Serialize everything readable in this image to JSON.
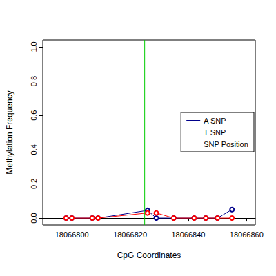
{
  "chart_data": {
    "type": "line",
    "x_label": "CpG Coordinates",
    "y_label": "Methylation Frequency",
    "xlim": [
      18066790,
      18066863
    ],
    "xticks": [
      18066800,
      18066820,
      18066840,
      18066860
    ],
    "ylim": [
      -0.04,
      1.04
    ],
    "yticks": [
      0.0,
      0.2,
      0.4,
      0.6,
      0.8,
      1.0
    ],
    "yticks_labels": [
      "0.0",
      "0.2",
      "0.4",
      "0.6",
      "0.8",
      "1.0"
    ],
    "x": [
      18066798,
      18066800,
      18066807,
      18066809,
      18066826,
      18066829,
      18066835,
      18066842,
      18066846,
      18066850,
      18066855
    ],
    "series": [
      {
        "name": "A SNP",
        "color": "#00008b",
        "marker": "open_circle",
        "values": [
          0,
          0,
          0,
          0,
          0.045,
          0,
          0,
          0,
          0,
          0,
          0.05
        ]
      },
      {
        "name": "T SNP",
        "color": "#ff0000",
        "marker": "open_circle",
        "values": [
          0,
          0,
          0,
          0,
          0.03,
          0.03,
          0,
          0,
          0,
          0,
          0
        ]
      }
    ],
    "snp_position": {
      "name": "SNP Position",
      "color": "#00cc00",
      "x": 18066825
    },
    "legend": "right",
    "grid": false
  }
}
